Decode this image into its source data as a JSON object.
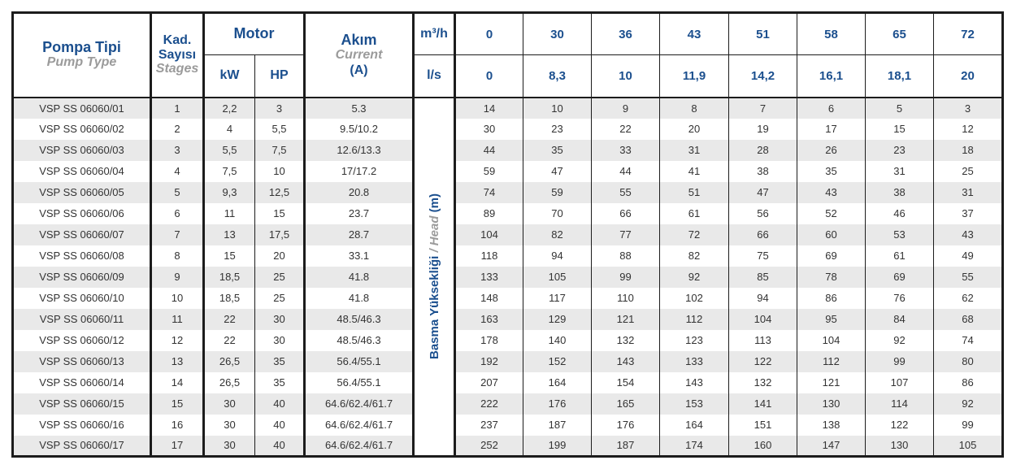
{
  "header": {
    "pump_type": {
      "tr": "Pompa Tipi",
      "en": "Pump Type"
    },
    "stages": {
      "tr": "Kad. Sayısı",
      "en": "Stages"
    },
    "motor": {
      "label": "Motor",
      "kw": "kW",
      "hp": "HP"
    },
    "current": {
      "tr": "Akım",
      "en": "Current",
      "unit": "(A)"
    },
    "flow_units": {
      "m3h": "m³/h",
      "ls": "l/s"
    },
    "flow_m3h": [
      "0",
      "30",
      "36",
      "43",
      "51",
      "58",
      "65",
      "72"
    ],
    "flow_ls": [
      "0",
      "8,3",
      "10",
      "11,9",
      "14,2",
      "16,1",
      "18,1",
      "20"
    ]
  },
  "head_axis": {
    "tr": "Basma Yüksekliği",
    "sep": " / ",
    "en": "Head",
    "unit": " (m)"
  },
  "rows": [
    {
      "type": "VSP SS 06060/01",
      "stages": "1",
      "kw": "2,2",
      "hp": "3",
      "current": "5.3",
      "head": [
        "14",
        "10",
        "9",
        "8",
        "7",
        "6",
        "5",
        "3"
      ]
    },
    {
      "type": "VSP SS 06060/02",
      "stages": "2",
      "kw": "4",
      "hp": "5,5",
      "current": "9.5/10.2",
      "head": [
        "30",
        "23",
        "22",
        "20",
        "19",
        "17",
        "15",
        "12"
      ]
    },
    {
      "type": "VSP SS 06060/03",
      "stages": "3",
      "kw": "5,5",
      "hp": "7,5",
      "current": "12.6/13.3",
      "head": [
        "44",
        "35",
        "33",
        "31",
        "28",
        "26",
        "23",
        "18"
      ]
    },
    {
      "type": "VSP SS 06060/04",
      "stages": "4",
      "kw": "7,5",
      "hp": "10",
      "current": "17/17.2",
      "head": [
        "59",
        "47",
        "44",
        "41",
        "38",
        "35",
        "31",
        "25"
      ]
    },
    {
      "type": "VSP SS 06060/05",
      "stages": "5",
      "kw": "9,3",
      "hp": "12,5",
      "current": "20.8",
      "head": [
        "74",
        "59",
        "55",
        "51",
        "47",
        "43",
        "38",
        "31"
      ]
    },
    {
      "type": "VSP SS 06060/06",
      "stages": "6",
      "kw": "11",
      "hp": "15",
      "current": "23.7",
      "head": [
        "89",
        "70",
        "66",
        "61",
        "56",
        "52",
        "46",
        "37"
      ]
    },
    {
      "type": "VSP SS 06060/07",
      "stages": "7",
      "kw": "13",
      "hp": "17,5",
      "current": "28.7",
      "head": [
        "104",
        "82",
        "77",
        "72",
        "66",
        "60",
        "53",
        "43"
      ]
    },
    {
      "type": "VSP SS 06060/08",
      "stages": "8",
      "kw": "15",
      "hp": "20",
      "current": "33.1",
      "head": [
        "118",
        "94",
        "88",
        "82",
        "75",
        "69",
        "61",
        "49"
      ]
    },
    {
      "type": "VSP SS 06060/09",
      "stages": "9",
      "kw": "18,5",
      "hp": "25",
      "current": "41.8",
      "head": [
        "133",
        "105",
        "99",
        "92",
        "85",
        "78",
        "69",
        "55"
      ]
    },
    {
      "type": "VSP SS 06060/10",
      "stages": "10",
      "kw": "18,5",
      "hp": "25",
      "current": "41.8",
      "head": [
        "148",
        "117",
        "110",
        "102",
        "94",
        "86",
        "76",
        "62"
      ]
    },
    {
      "type": "VSP SS 06060/11",
      "stages": "11",
      "kw": "22",
      "hp": "30",
      "current": "48.5/46.3",
      "head": [
        "163",
        "129",
        "121",
        "112",
        "104",
        "95",
        "84",
        "68"
      ]
    },
    {
      "type": "VSP SS 06060/12",
      "stages": "12",
      "kw": "22",
      "hp": "30",
      "current": "48.5/46.3",
      "head": [
        "178",
        "140",
        "132",
        "123",
        "113",
        "104",
        "92",
        "74"
      ]
    },
    {
      "type": "VSP SS 06060/13",
      "stages": "13",
      "kw": "26,5",
      "hp": "35",
      "current": "56.4/55.1",
      "head": [
        "192",
        "152",
        "143",
        "133",
        "122",
        "112",
        "99",
        "80"
      ]
    },
    {
      "type": "VSP SS 06060/14",
      "stages": "14",
      "kw": "26,5",
      "hp": "35",
      "current": "56.4/55.1",
      "head": [
        "207",
        "164",
        "154",
        "143",
        "132",
        "121",
        "107",
        "86"
      ]
    },
    {
      "type": "VSP SS 06060/15",
      "stages": "15",
      "kw": "30",
      "hp": "40",
      "current": "64.6/62.4/61.7",
      "head": [
        "222",
        "176",
        "165",
        "153",
        "141",
        "130",
        "114",
        "92"
      ]
    },
    {
      "type": "VSP SS 06060/16",
      "stages": "16",
      "kw": "30",
      "hp": "40",
      "current": "64.6/62.4/61.7",
      "head": [
        "237",
        "187",
        "176",
        "164",
        "151",
        "138",
        "122",
        "99"
      ]
    },
    {
      "type": "VSP SS 06060/17",
      "stages": "17",
      "kw": "30",
      "hp": "40",
      "current": "64.6/62.4/61.7",
      "head": [
        "252",
        "199",
        "187",
        "174",
        "160",
        "147",
        "130",
        "105"
      ]
    }
  ],
  "colors": {
    "accent_blue": "#1b4f8e",
    "muted_gray": "#9b9b9b",
    "row_alt_gray": "#e9e9e9",
    "border_black": "#1c1c1c"
  }
}
